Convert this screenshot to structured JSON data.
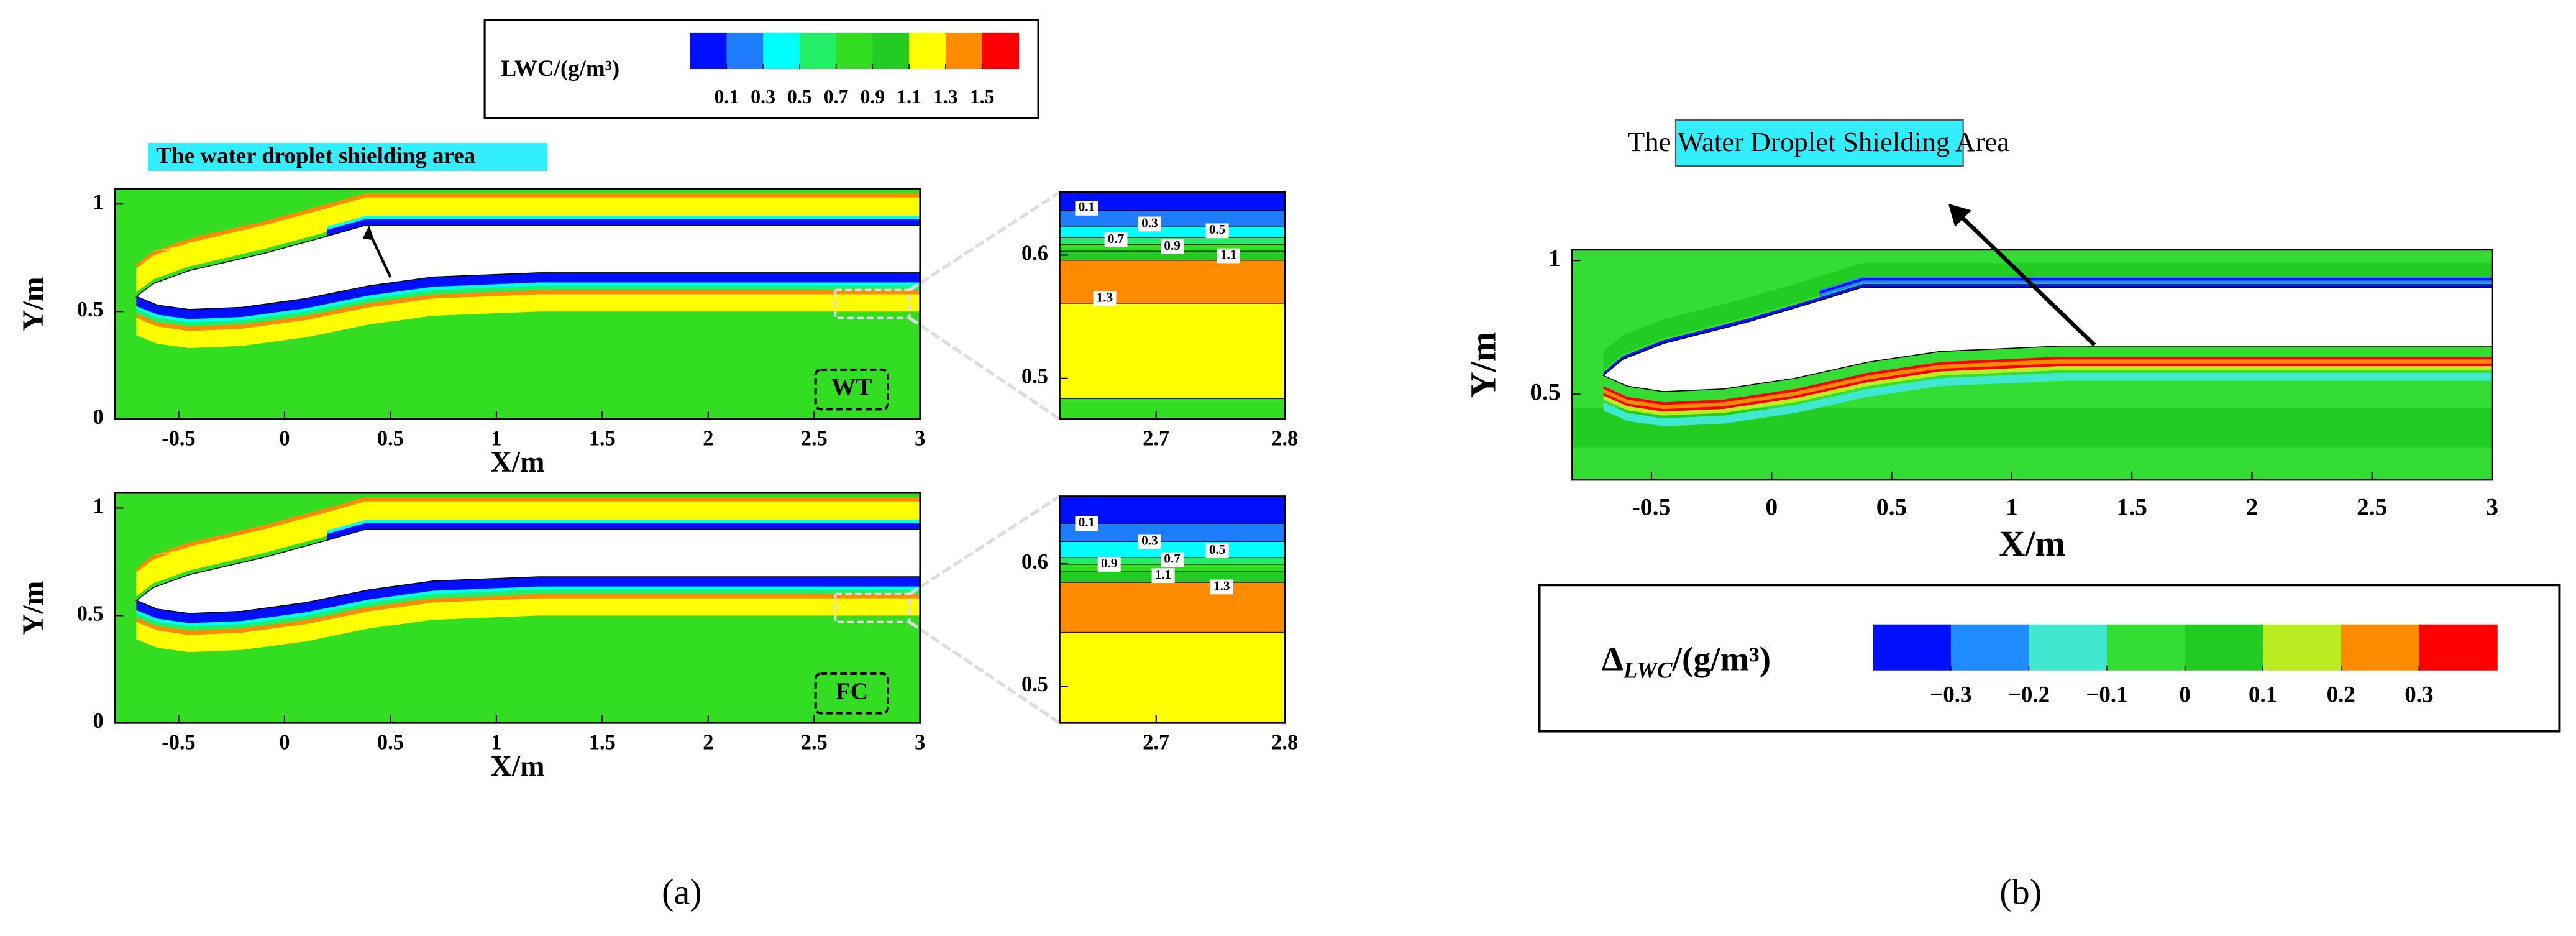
{
  "chart_data": [
    {
      "type": "contour",
      "label": "WT",
      "xlabel": "X/m",
      "ylabel": "Y/m",
      "xlim": [
        -0.8,
        3
      ],
      "ylim": [
        0,
        1.07
      ],
      "xticks": [
        -0.5,
        0,
        0.5,
        1,
        1.5,
        2,
        2.5,
        3
      ],
      "yticks": [
        0,
        0.5,
        1
      ]
    },
    {
      "type": "contour-zoom",
      "xlim": [
        2.625,
        2.8
      ],
      "ylim": [
        0.467,
        0.651
      ],
      "xticks": [
        2.7,
        2.8
      ],
      "yticks": [
        0.5,
        0.6
      ],
      "contour_labels": [
        0.1,
        0.3,
        0.5,
        0.7,
        0.9,
        1.1,
        1.3
      ]
    },
    {
      "type": "contour",
      "label": "FC",
      "xlabel": "X/m",
      "ylabel": "Y/m",
      "xlim": [
        -0.8,
        3
      ],
      "ylim": [
        0,
        1.07
      ],
      "xticks": [
        -0.5,
        0,
        0.5,
        1,
        1.5,
        2,
        2.5,
        3
      ],
      "yticks": [
        0,
        0.5,
        1
      ]
    },
    {
      "type": "contour-zoom",
      "xlim": [
        2.625,
        2.8
      ],
      "ylim": [
        0.47,
        0.655
      ],
      "xticks": [
        2.7,
        2.8
      ],
      "yticks": [
        0.5,
        0.6
      ],
      "contour_labels": [
        0.1,
        0.3,
        0.5,
        0.7,
        0.9,
        1.1,
        1.3
      ]
    },
    {
      "type": "contour",
      "xlabel": "X/m",
      "ylabel": "Y/m",
      "xlim": [
        -0.83,
        3
      ],
      "ylim": [
        0.18,
        1.04
      ],
      "xticks": [
        -0.5,
        0,
        0.5,
        1,
        1.5,
        2,
        2.5,
        3
      ],
      "yticks": [
        0.5,
        1
      ]
    }
  ],
  "colorbars": [
    {
      "title": "LWC/(g/m³)",
      "levels": [
        0.1,
        0.3,
        0.5,
        0.7,
        0.9,
        1.1,
        1.3,
        1.5
      ],
      "colors": [
        "#0010ff",
        "#1e7cff",
        "#00ffff",
        "#22ee66",
        "#33dd22",
        "#22cc22",
        "#ffff00",
        "#ff8c00",
        "#ff0000"
      ]
    },
    {
      "title_symbol": "Δ",
      "title_subscript": "LWC",
      "title_unit": "/(g/m³)",
      "levels": [
        {
          "value": -0.3,
          "label": "−0.3"
        },
        {
          "value": -0.2,
          "label": "−0.2"
        },
        {
          "value": -0.1,
          "label": "−0.1"
        },
        0,
        0.1,
        0.2,
        0.3
      ],
      "colors": [
        "#0010ff",
        "#1e8cff",
        "#40e8d0",
        "#33dd33",
        "#22cc22",
        "#bbee22",
        "#ff8c00",
        "#ff0000"
      ]
    }
  ],
  "annotations": [
    "The water droplet shielding area",
    "The Water Droplet Shielding Area"
  ],
  "captions": [
    "(a)",
    "(b)"
  ]
}
